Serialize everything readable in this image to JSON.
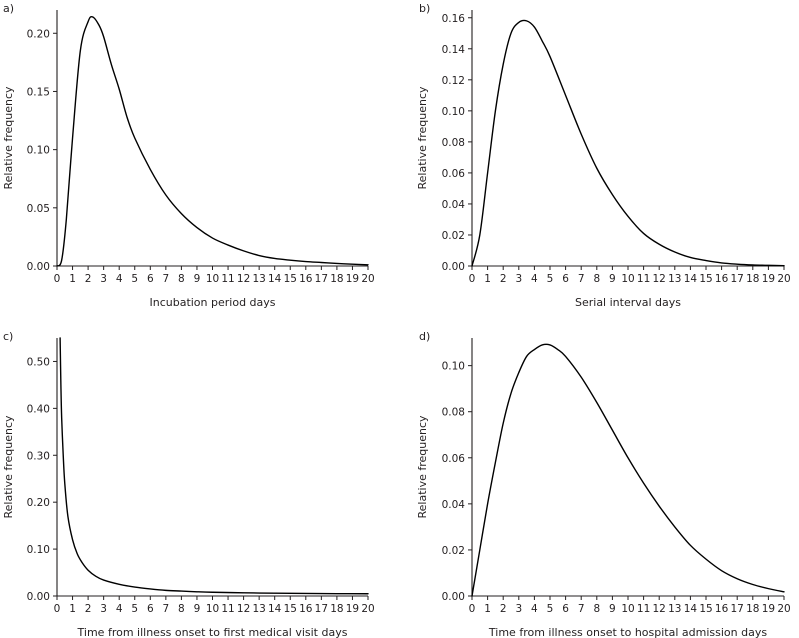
{
  "chart_data": [
    {
      "panel": "a)",
      "type": "line",
      "xlabel": "Incubation period days",
      "ylabel": "Relative frequency",
      "xlim": [
        0,
        20
      ],
      "ylim": [
        0,
        0.22
      ],
      "xticks": [
        0,
        1,
        2,
        3,
        4,
        5,
        6,
        7,
        8,
        9,
        10,
        11,
        12,
        13,
        14,
        15,
        16,
        17,
        18,
        19,
        20
      ],
      "yticks": [
        0,
        0.05,
        0.1,
        0.15,
        0.2
      ],
      "ytick_labels": [
        "0.00",
        "0.05",
        "0.10",
        "0.15",
        "0.20"
      ],
      "series": [
        {
          "name": "Incubation period",
          "x": [
            0,
            0.3,
            0.6,
            1.0,
            1.5,
            2.0,
            2.3,
            2.7,
            3.0,
            3.5,
            4.0,
            4.5,
            5.0,
            6.0,
            7.0,
            8.0,
            9.0,
            10.0,
            11.0,
            12.0,
            13.0,
            14.0,
            15.0,
            16.0,
            17.0,
            18.0,
            19.0,
            20.0
          ],
          "y": [
            0,
            0.005,
            0.04,
            0.11,
            0.185,
            0.21,
            0.214,
            0.207,
            0.197,
            0.173,
            0.152,
            0.128,
            0.11,
            0.083,
            0.061,
            0.045,
            0.033,
            0.024,
            0.018,
            0.013,
            0.009,
            0.0065,
            0.005,
            0.0038,
            0.003,
            0.0022,
            0.0016,
            0.001
          ]
        }
      ]
    },
    {
      "panel": "b)",
      "type": "line",
      "xlabel": "Serial interval days",
      "ylabel": "Relative frequency",
      "xlim": [
        0,
        20
      ],
      "ylim": [
        0,
        0.165
      ],
      "xticks": [
        0,
        1,
        2,
        3,
        4,
        5,
        6,
        7,
        8,
        9,
        10,
        11,
        12,
        13,
        14,
        15,
        16,
        17,
        18,
        19,
        20
      ],
      "yticks": [
        0,
        0.02,
        0.04,
        0.06,
        0.08,
        0.1,
        0.12,
        0.14,
        0.16
      ],
      "ytick_labels": [
        "0.00",
        "0.02",
        "0.04",
        "0.06",
        "0.08",
        "0.10",
        "0.12",
        "0.14",
        "0.16"
      ],
      "series": [
        {
          "name": "Serial interval",
          "x": [
            0,
            0.5,
            1.0,
            1.5,
            2.0,
            2.5,
            3.0,
            3.5,
            4.0,
            4.5,
            5.0,
            6.0,
            7.0,
            8.0,
            9.0,
            10.0,
            11.0,
            12.0,
            13.0,
            14.0,
            15.0,
            16.0,
            17.0,
            18.0,
            19.0,
            20.0
          ],
          "y": [
            0,
            0.02,
            0.06,
            0.1,
            0.13,
            0.15,
            0.157,
            0.158,
            0.154,
            0.145,
            0.135,
            0.11,
            0.085,
            0.063,
            0.046,
            0.032,
            0.021,
            0.014,
            0.009,
            0.0055,
            0.0035,
            0.002,
            0.0012,
            0.0007,
            0.0004,
            0.0002
          ]
        }
      ]
    },
    {
      "panel": "c)",
      "type": "line",
      "xlabel": "Time from illness onset to first medical visit days",
      "ylabel": "Relative frequency",
      "xlim": [
        0,
        20
      ],
      "ylim": [
        0,
        0.55
      ],
      "xticks": [
        0,
        1,
        2,
        3,
        4,
        5,
        6,
        7,
        8,
        9,
        10,
        11,
        12,
        13,
        14,
        15,
        16,
        17,
        18,
        19,
        20
      ],
      "yticks": [
        0,
        0.1,
        0.2,
        0.3,
        0.4,
        0.5
      ],
      "ytick_labels": [
        "0.00",
        "0.10",
        "0.20",
        "0.30",
        "0.40",
        "0.50"
      ],
      "series": [
        {
          "name": "Onset to first medical visit",
          "x": [
            0.2,
            0.25,
            0.3,
            0.4,
            0.5,
            0.7,
            1.0,
            1.3,
            1.6,
            2.0,
            2.5,
            3.0,
            4.0,
            5.0,
            6.0,
            7.0,
            8.0,
            9.0,
            10.0,
            12.0,
            14.0,
            16.0,
            18.0,
            20.0
          ],
          "y": [
            0.55,
            0.45,
            0.38,
            0.3,
            0.24,
            0.17,
            0.12,
            0.09,
            0.072,
            0.055,
            0.042,
            0.034,
            0.025,
            0.019,
            0.015,
            0.012,
            0.0105,
            0.009,
            0.008,
            0.0068,
            0.006,
            0.0055,
            0.005,
            0.0048
          ]
        }
      ]
    },
    {
      "panel": "d)",
      "type": "line",
      "xlabel": "Time from illness onset to hospital admission days",
      "ylabel": "Relative frequency",
      "xlim": [
        0,
        20
      ],
      "ylim": [
        0,
        0.112
      ],
      "xticks": [
        0,
        1,
        2,
        3,
        4,
        5,
        6,
        7,
        8,
        9,
        10,
        11,
        12,
        13,
        14,
        15,
        16,
        17,
        18,
        19,
        20
      ],
      "yticks": [
        0,
        0.02,
        0.04,
        0.06,
        0.08,
        0.1
      ],
      "ytick_labels": [
        "0.00",
        "0.02",
        "0.04",
        "0.06",
        "0.08",
        "0.10"
      ],
      "series": [
        {
          "name": "Onset to hospital admission",
          "x": [
            0,
            0.5,
            1.0,
            1.5,
            2.0,
            2.5,
            3.0,
            3.5,
            4.0,
            4.5,
            5.0,
            5.5,
            6.0,
            7.0,
            8.0,
            9.0,
            10.0,
            11.0,
            12.0,
            13.0,
            14.0,
            15.0,
            16.0,
            17.0,
            18.0,
            19.0,
            20.0
          ],
          "y": [
            0,
            0.02,
            0.04,
            0.058,
            0.075,
            0.088,
            0.097,
            0.104,
            0.107,
            0.109,
            0.109,
            0.107,
            0.104,
            0.095,
            0.084,
            0.072,
            0.06,
            0.049,
            0.039,
            0.03,
            0.022,
            0.016,
            0.011,
            0.0075,
            0.005,
            0.0032,
            0.0018
          ]
        }
      ]
    }
  ]
}
